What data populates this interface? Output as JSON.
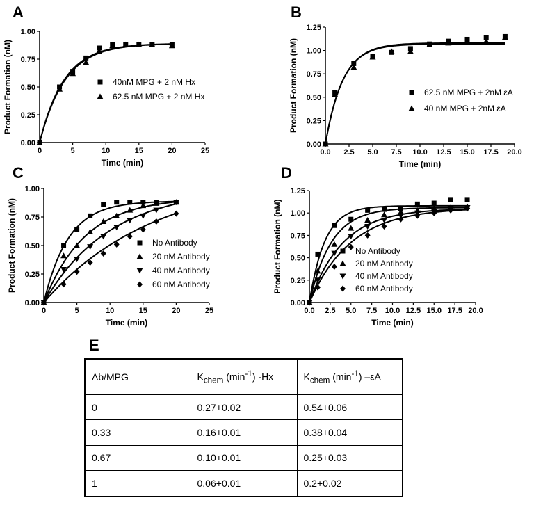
{
  "chart_data": [
    {
      "panel": "A",
      "type": "scatter",
      "xlabel": "Time (min)",
      "ylabel": "Product Formation (nM)",
      "xlim": [
        0,
        25
      ],
      "ylim": [
        0,
        1.0
      ],
      "x_ticks": [
        0,
        5,
        10,
        15,
        20,
        25
      ],
      "y_ticks": [
        0.0,
        0.25,
        0.5,
        0.75,
        1.0
      ],
      "x_tick_labels": [
        "0",
        "5",
        "10",
        "15",
        "20",
        "25"
      ],
      "y_tick_labels": [
        "0.00",
        "0.25",
        "0.50",
        "0.75",
        "1.00"
      ],
      "legend_position": "right",
      "series": [
        {
          "name": "40nM MPG + 2 nM Hx",
          "marker": "square",
          "x": [
            0,
            3,
            5,
            7,
            9,
            11,
            13,
            15,
            17,
            20
          ],
          "y": [
            0.0,
            0.5,
            0.64,
            0.76,
            0.85,
            0.88,
            0.88,
            0.88,
            0.88,
            0.88
          ],
          "fit": {
            "amplitude": 0.89,
            "k": 0.27
          }
        },
        {
          "name": "62.5 nM MPG + 2 nM Hx",
          "marker": "triangle",
          "x": [
            0,
            3,
            5,
            7,
            9,
            11,
            13,
            15,
            17,
            20
          ],
          "y": [
            0.0,
            0.48,
            0.62,
            0.72,
            0.82,
            0.87,
            0.88,
            0.88,
            0.88,
            0.87
          ],
          "fit": {
            "amplitude": 0.89,
            "k": 0.26
          }
        }
      ]
    },
    {
      "panel": "B",
      "type": "scatter",
      "xlabel": "Time (min)",
      "ylabel": "Product Formation (nM)",
      "xlim": [
        0,
        20
      ],
      "ylim": [
        0,
        1.25
      ],
      "x_ticks": [
        0,
        2.5,
        5,
        7.5,
        10,
        12.5,
        15,
        17.5,
        20
      ],
      "y_ticks": [
        0.0,
        0.25,
        0.5,
        0.75,
        1.0,
        1.25
      ],
      "x_tick_labels": [
        "0.0",
        "2.5",
        "5.0",
        "7.5",
        "10.0",
        "12.5",
        "15.0",
        "17.5",
        "20.0"
      ],
      "y_tick_labels": [
        "0.00",
        "0.25",
        "0.50",
        "0.75",
        "1.00",
        "1.25"
      ],
      "legend_position": "right",
      "series": [
        {
          "name": "62.5 nM MPG + 2nM εA",
          "marker": "square",
          "x": [
            0,
            1,
            3,
            5,
            7,
            9,
            11,
            13,
            15,
            17,
            19
          ],
          "y": [
            0.0,
            0.55,
            0.86,
            0.94,
            0.98,
            1.02,
            1.07,
            1.1,
            1.12,
            1.14,
            1.15
          ],
          "fit": {
            "amplitude": 1.08,
            "k": 0.54
          }
        },
        {
          "name": "40 nM MPG + 2nM εA",
          "marker": "triangle",
          "x": [
            0,
            1,
            3,
            5,
            7,
            9,
            11,
            13,
            15,
            17,
            19
          ],
          "y": [
            0.0,
            0.53,
            0.82,
            0.93,
            0.99,
            0.99,
            1.06,
            1.08,
            1.1,
            1.1,
            1.14
          ],
          "fit": {
            "amplitude": 1.07,
            "k": 0.55
          }
        }
      ]
    },
    {
      "panel": "C",
      "type": "scatter",
      "xlabel": "Time (min)",
      "ylabel": "Product Formation (nM)",
      "xlim": [
        0,
        25
      ],
      "ylim": [
        0,
        1.0
      ],
      "x_ticks": [
        0,
        5,
        10,
        15,
        20,
        25
      ],
      "y_ticks": [
        0.0,
        0.25,
        0.5,
        0.75,
        1.0
      ],
      "x_tick_labels": [
        "0",
        "5",
        "10",
        "15",
        "20",
        "25"
      ],
      "y_tick_labels": [
        "0.00",
        "0.25",
        "0.50",
        "0.75",
        "1.00"
      ],
      "legend_position": "right",
      "series": [
        {
          "name": "No Antibody",
          "marker": "square",
          "x": [
            0,
            3,
            5,
            7,
            9,
            11,
            13,
            15,
            17,
            20
          ],
          "y": [
            0.0,
            0.5,
            0.64,
            0.76,
            0.86,
            0.88,
            0.88,
            0.88,
            0.88,
            0.88
          ],
          "fit": {
            "amplitude": 0.89,
            "k": 0.27
          }
        },
        {
          "name": "20 nM Antibody",
          "marker": "triangle",
          "x": [
            0,
            3,
            5,
            7,
            9,
            11,
            13,
            15,
            17,
            20
          ],
          "y": [
            0.0,
            0.41,
            0.5,
            0.62,
            0.71,
            0.76,
            0.81,
            0.85,
            0.87,
            0.88
          ],
          "fit": {
            "amplitude": 0.92,
            "k": 0.16
          }
        },
        {
          "name": "40 nM Antibody",
          "marker": "inverted-triangle",
          "x": [
            0,
            3,
            5,
            7,
            9,
            11,
            13,
            15,
            17,
            20
          ],
          "y": [
            0.0,
            0.29,
            0.38,
            0.49,
            0.58,
            0.66,
            0.72,
            0.76,
            0.81,
            0.88
          ],
          "fit": {
            "amplitude": 1.0,
            "k": 0.1
          }
        },
        {
          "name": "60 nM Antibody",
          "marker": "diamond",
          "x": [
            0,
            3,
            5,
            7,
            9,
            11,
            13,
            15,
            17,
            20
          ],
          "y": [
            0.0,
            0.16,
            0.27,
            0.35,
            0.43,
            0.51,
            0.58,
            0.64,
            0.71,
            0.78
          ],
          "fit": {
            "amplitude": 1.12,
            "k": 0.06
          }
        }
      ]
    },
    {
      "panel": "D",
      "type": "scatter",
      "xlabel": "Time (min)",
      "ylabel": "Product Formation (nM)",
      "xlim": [
        0,
        20
      ],
      "ylim": [
        0,
        1.25
      ],
      "x_ticks": [
        0,
        2.5,
        5,
        7.5,
        10,
        12.5,
        15,
        17.5,
        20
      ],
      "y_ticks": [
        0.0,
        0.25,
        0.5,
        0.75,
        1.0,
        1.25
      ],
      "x_tick_labels": [
        "0.0",
        "2.5",
        "5.0",
        "7.5",
        "10.0",
        "12.5",
        "15.0",
        "17.5",
        "20.0"
      ],
      "y_tick_labels": [
        "0.00",
        "0.25",
        "0.50",
        "0.75",
        "1.00",
        "1.25"
      ],
      "legend_position": "right",
      "series": [
        {
          "name": "No Antibody",
          "marker": "square",
          "x": [
            0,
            1,
            3,
            5,
            7,
            9,
            11,
            13,
            15,
            17,
            19
          ],
          "y": [
            0.0,
            0.54,
            0.86,
            0.93,
            1.03,
            1.04,
            1.05,
            1.1,
            1.11,
            1.15,
            1.15
          ],
          "fit": {
            "amplitude": 1.08,
            "k": 0.54
          }
        },
        {
          "name": "20 nM Antibody",
          "marker": "triangle",
          "x": [
            0,
            1,
            3,
            5,
            7,
            9,
            11,
            13,
            15,
            17,
            19
          ],
          "y": [
            0.0,
            0.35,
            0.65,
            0.83,
            0.92,
            0.98,
            1.01,
            1.03,
            1.05,
            1.06,
            1.07
          ],
          "fit": {
            "amplitude": 1.06,
            "k": 0.38
          }
        },
        {
          "name": "40 nM Antibody",
          "marker": "inverted-triangle",
          "x": [
            0,
            1,
            3,
            5,
            7,
            9,
            11,
            13,
            15,
            17,
            19
          ],
          "y": [
            0.0,
            0.25,
            0.55,
            0.74,
            0.85,
            0.92,
            0.97,
            1.0,
            1.02,
            1.05,
            1.06
          ],
          "fit": {
            "amplitude": 1.05,
            "k": 0.25
          }
        },
        {
          "name": "60 nM Antibody",
          "marker": "diamond",
          "x": [
            0,
            1,
            3,
            5,
            7,
            9,
            11,
            13,
            15,
            17,
            19
          ],
          "y": [
            0.0,
            0.17,
            0.4,
            0.62,
            0.75,
            0.85,
            0.93,
            0.97,
            1.0,
            1.03,
            1.05
          ],
          "fit": {
            "amplitude": 1.06,
            "k": 0.2
          }
        }
      ]
    },
    {
      "panel": "E",
      "type": "table",
      "columns": [
        "Ab/MPG",
        "Kchem (min-1) -Hx",
        "Kchem (min-1) –εA"
      ],
      "rows": [
        [
          "0",
          "0.27±0.02",
          "0.54±0.06"
        ],
        [
          "0.33",
          "0.16±0.01",
          "0.38±0.04"
        ],
        [
          "0.67",
          "0.10±0.01",
          "0.25±0.03"
        ],
        [
          "1",
          "0.06±0.01",
          "0.2±0.02"
        ]
      ]
    }
  ],
  "table": {
    "label": "E",
    "header": {
      "col1": "Ab/MPG",
      "col2": {
        "k": "K",
        "sub": "chem",
        "unit_open": " (min",
        "sup": "-1",
        "unit_close": ") -Hx"
      },
      "col3": {
        "k": "K",
        "sub": "chem",
        "unit_open": " (min",
        "sup": "-1",
        "unit_close": ") –εA"
      }
    },
    "rows": [
      {
        "ratio": "0",
        "hx": {
          "val": "0.27",
          "pm": "+",
          "err": "0.02"
        },
        "ea": {
          "val": "0.54",
          "pm": "+",
          "err": "0.06"
        }
      },
      {
        "ratio": "0.33",
        "hx": {
          "val": "0.16",
          "pm": "+",
          "err": "0.01"
        },
        "ea": {
          "val": "0.38",
          "pm": "+",
          "err": "0.04"
        }
      },
      {
        "ratio": "0.67",
        "hx": {
          "val": "0.10",
          "pm": "+",
          "err": "0.01"
        },
        "ea": {
          "val": "0.25",
          "pm": "+",
          "err": "0.03"
        }
      },
      {
        "ratio": "1",
        "hx": {
          "val": "0.06",
          "pm": "+",
          "err": "0.01"
        },
        "ea": {
          "val": "0.2",
          "pm": "+",
          "err": "0.02"
        }
      }
    ]
  }
}
